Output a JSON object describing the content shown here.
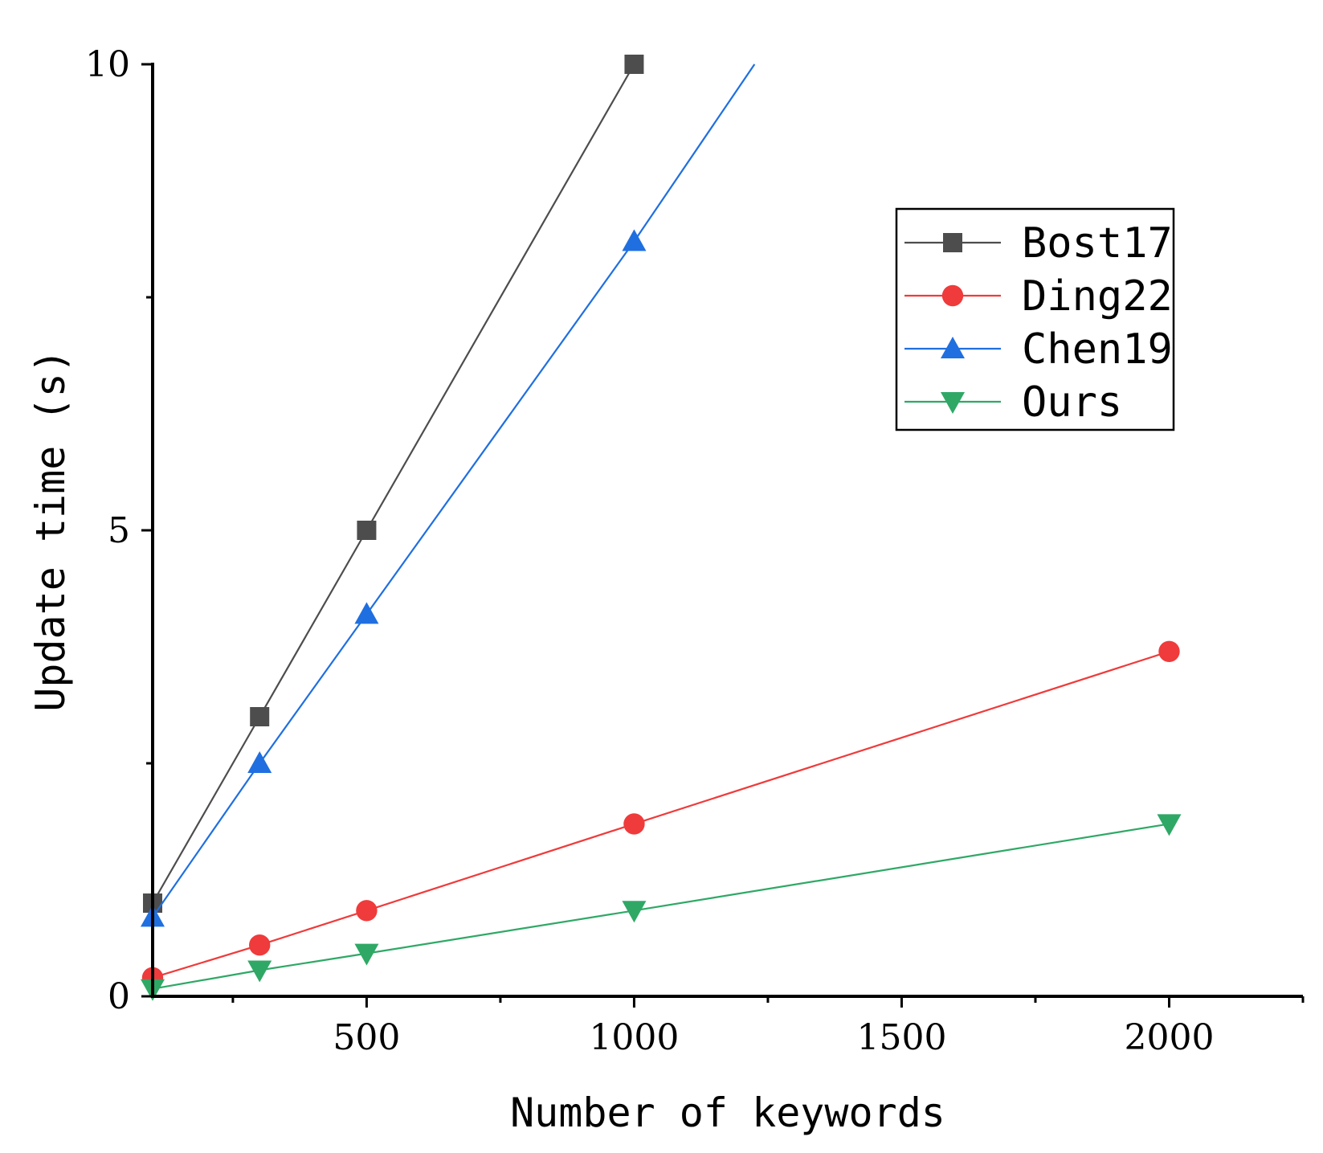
{
  "chart_data": {
    "type": "line",
    "title": "",
    "xlabel": "Number of keywords",
    "ylabel": "Update time (s)",
    "xlim": [
      100,
      2250
    ],
    "ylim": [
      0,
      10
    ],
    "x_ticks": [
      500,
      1000,
      1500,
      2000
    ],
    "x_minor_ticks": [
      250,
      750,
      1250,
      1750,
      2250
    ],
    "y_ticks": [
      0,
      5,
      10
    ],
    "y_minor_ticks": [
      2.5,
      7.5
    ],
    "grid": false,
    "legend_position": "top-right",
    "series": [
      {
        "name": "Bost17",
        "color": "#4d4d4d",
        "marker": "square",
        "x": [
          100,
          300,
          500,
          1000
        ],
        "y": [
          1.0,
          3.0,
          5.0,
          10.0
        ],
        "trend_to": null
      },
      {
        "name": "Ding22",
        "color": "#ef3b3b",
        "marker": "circle",
        "x": [
          100,
          300,
          500,
          1000,
          2000
        ],
        "y": [
          0.2,
          0.55,
          0.92,
          1.85,
          3.7
        ],
        "trend_to": null
      },
      {
        "name": "Chen19",
        "color": "#1f6fe0",
        "marker": "triangle-up",
        "x": [
          100,
          300,
          500,
          1000
        ],
        "y": [
          0.85,
          2.5,
          4.1,
          8.1
        ],
        "trend_to": {
          "x": 1225,
          "y": 10.0
        }
      },
      {
        "name": "Ours",
        "color": "#2fa866",
        "marker": "triangle-down",
        "x": [
          100,
          300,
          500,
          1000,
          2000
        ],
        "y": [
          0.08,
          0.28,
          0.46,
          0.92,
          1.85
        ],
        "trend_to": null
      }
    ]
  }
}
